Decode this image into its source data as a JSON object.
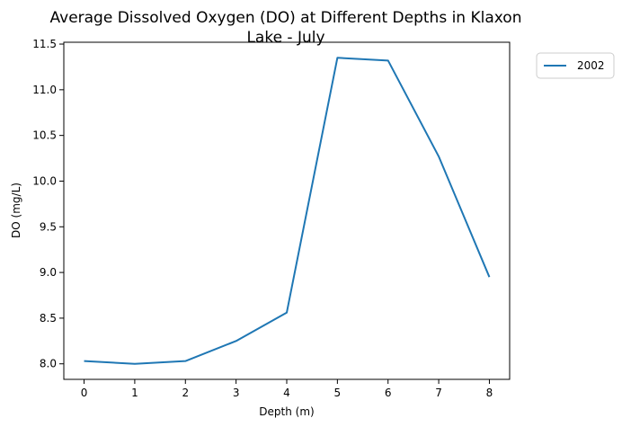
{
  "chart_data": {
    "type": "line",
    "title_lines": [
      "Average Dissolved Oxygen (DO) at Different Depths in Klaxon",
      "Lake - July"
    ],
    "xlabel": "Depth (m)",
    "ylabel": "DO (mg/L)",
    "x": [
      0,
      1,
      2,
      3,
      4,
      5,
      6,
      7,
      8
    ],
    "series": [
      {
        "name": "2002",
        "color": "#1f77b4",
        "values": [
          8.03,
          8.0,
          8.03,
          8.25,
          8.56,
          11.35,
          11.32,
          10.27,
          8.95
        ]
      }
    ],
    "xlim": [
      -0.4,
      8.4
    ],
    "ylim": [
      7.83,
      11.52
    ],
    "x_ticks": [
      "0",
      "1",
      "2",
      "3",
      "4",
      "5",
      "6",
      "7",
      "8"
    ],
    "y_ticks": [
      "8.0",
      "8.5",
      "9.0",
      "9.5",
      "10.0",
      "10.5",
      "11.0",
      "11.5"
    ],
    "grid": false,
    "legend_position": "outside-top-right"
  }
}
